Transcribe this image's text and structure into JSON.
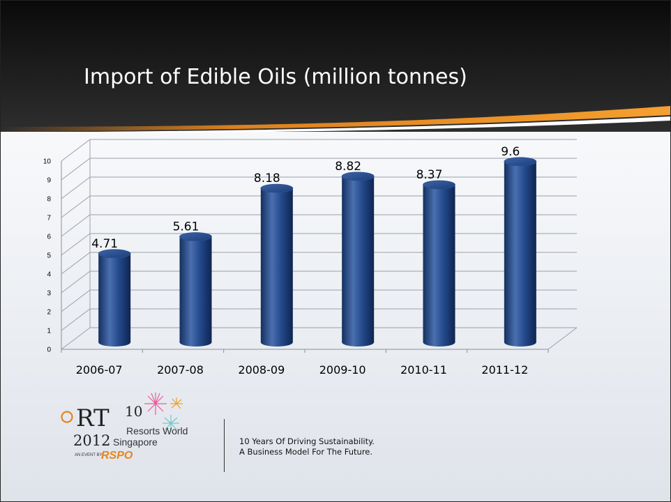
{
  "slide": {
    "title": "Import of Edible Oils (million tonnes)",
    "tagline_line1": "10 Years Of Driving Sustainability.",
    "tagline_line2": "A Business Model For The Future."
  },
  "logo": {
    "rt": "RT",
    "ten": "10",
    "year": "2012",
    "venue_line1": "Resorts World",
    "venue_line2": "Singapore",
    "event_by": "AN EVENT BY",
    "org": "RSPO"
  },
  "colors": {
    "bar": "#1d3f7a",
    "bar_highlight": "#4a6fb0",
    "header_dark": "#141414",
    "accent_orange": "#f08a1c"
  },
  "chart_data": {
    "type": "bar",
    "style": "3d-cylinder",
    "title": "",
    "xlabel": "",
    "ylabel": "",
    "categories": [
      "2006-07",
      "2007-08",
      "2008-09",
      "2009-10",
      "2010-11",
      "2011-12"
    ],
    "values": [
      4.71,
      5.61,
      8.18,
      8.82,
      8.37,
      9.6
    ],
    "value_labels": [
      "4.71",
      "5.61",
      "8.18",
      "8.82",
      "8.37",
      "9.6"
    ],
    "yticks": [
      "0",
      "1",
      "2",
      "3",
      "4",
      "5",
      "6",
      "7",
      "8",
      "9",
      "10"
    ],
    "ylim": [
      0,
      10
    ],
    "grid": true,
    "legend": "none"
  }
}
